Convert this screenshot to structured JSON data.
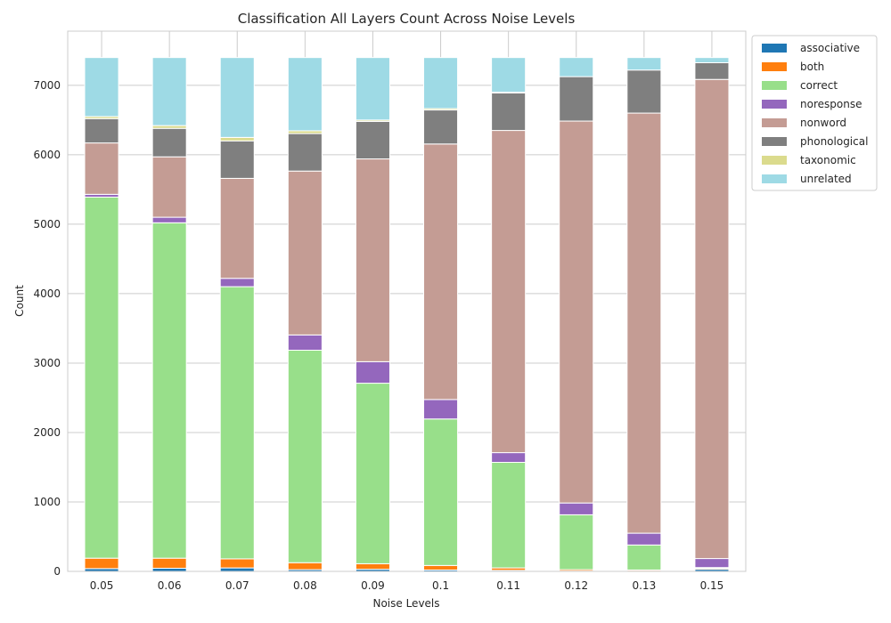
{
  "chart_data": {
    "type": "bar",
    "stacked": true,
    "title": "Classification All Layers Count Across Noise Levels",
    "xlabel": "Noise Levels",
    "ylabel": "Count",
    "ylim": [
      0,
      7780
    ],
    "yticks": [
      0,
      1000,
      2000,
      3000,
      4000,
      5000,
      6000,
      7000
    ],
    "grid": true,
    "legend_position": "outside-top-right",
    "categories": [
      "0.05",
      "0.06",
      "0.07",
      "0.08",
      "0.09",
      "0.1",
      "0.11",
      "0.12",
      "0.13",
      "0.15"
    ],
    "series": [
      {
        "name": "associative",
        "color": "#1f77b4",
        "values": [
          40,
          45,
          50,
          25,
          30,
          20,
          15,
          5,
          5,
          30
        ]
      },
      {
        "name": "both",
        "color": "#ff7f0e",
        "values": [
          150,
          145,
          130,
          100,
          80,
          65,
          35,
          20,
          15,
          15
        ]
      },
      {
        "name": "correct",
        "color": "#98df8a",
        "values": [
          5200,
          4830,
          3920,
          3060,
          2600,
          2110,
          1520,
          790,
          360,
          10
        ]
      },
      {
        "name": "noresponse",
        "color": "#9467bd",
        "values": [
          40,
          80,
          120,
          220,
          310,
          280,
          140,
          170,
          170,
          130
        ]
      },
      {
        "name": "nonword",
        "color": "#c49c94",
        "values": [
          740,
          870,
          1440,
          2360,
          2920,
          3680,
          4640,
          5500,
          6050,
          6900
        ]
      },
      {
        "name": "phonological",
        "color": "#7f7f7f",
        "values": [
          350,
          410,
          540,
          540,
          540,
          490,
          540,
          640,
          620,
          240
        ]
      },
      {
        "name": "taxonomic",
        "color": "#dbdb8d",
        "values": [
          30,
          40,
          50,
          40,
          20,
          20,
          10,
          0,
          0,
          0
        ]
      },
      {
        "name": "unrelated",
        "color": "#9edae5",
        "values": [
          850,
          980,
          1150,
          1055,
          900,
          735,
          500,
          275,
          180,
          75
        ]
      }
    ]
  }
}
